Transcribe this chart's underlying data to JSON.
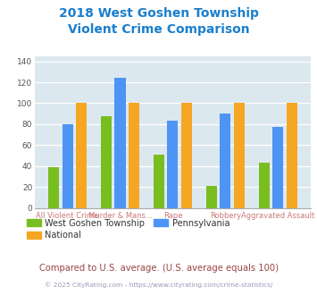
{
  "title_line1": "2018 West Goshen Township",
  "title_line2": "Violent Crime Comparison",
  "categories": [
    "All Violent Crime",
    "Murder & Mans...",
    "Rape",
    "Robbery",
    "Aggravated Assault"
  ],
  "series_order": [
    "West Goshen Township",
    "Pennsylvania",
    "National"
  ],
  "series": {
    "West Goshen Township": [
      39,
      88,
      51,
      21,
      43
    ],
    "Pennsylvania": [
      80,
      124,
      83,
      90,
      77
    ],
    "National": [
      100,
      100,
      100,
      100,
      100
    ]
  },
  "colors": {
    "West Goshen Township": "#78be21",
    "Pennsylvania": "#4d94f5",
    "National": "#f5a623"
  },
  "ylim": [
    0,
    145
  ],
  "yticks": [
    0,
    20,
    40,
    60,
    80,
    100,
    120,
    140
  ],
  "xticklabel_color": "#cc7777",
  "title_color": "#1a7fcc",
  "plot_bg_color": "#dce8ef",
  "grid_color": "#ffffff",
  "footer_text": "Compared to U.S. average. (U.S. average equals 100)",
  "footer_color": "#994444",
  "copyright_text": "© 2025 CityRating.com - https://www.cityrating.com/crime-statistics/",
  "copyright_color": "#9999bb",
  "legend_text_color": "#333333",
  "ytick_color": "#555555"
}
